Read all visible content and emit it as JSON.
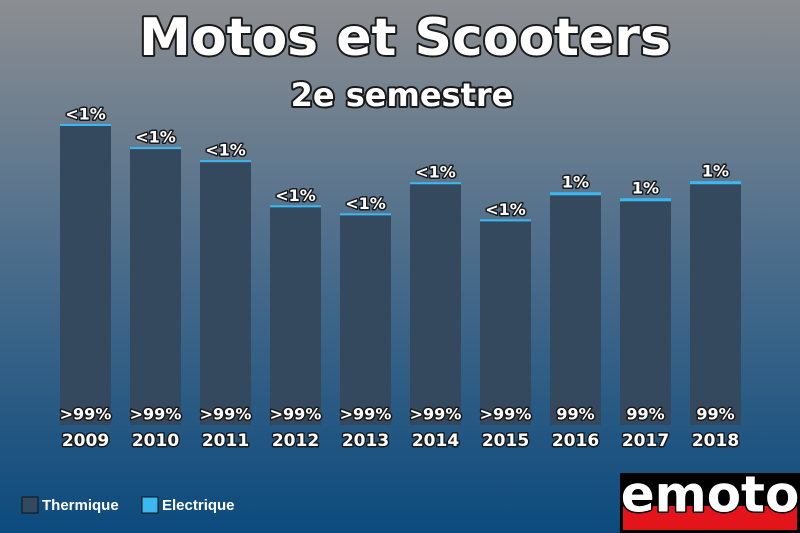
{
  "chart_data": {
    "type": "stacked_bar",
    "title": "Motos et Scooters",
    "subtitle": "2e semestre",
    "categories": [
      "2009",
      "2010",
      "2011",
      "2012",
      "2013",
      "2014",
      "2015",
      "2016",
      "2017",
      "2018"
    ],
    "series": [
      {
        "name": "Thermique",
        "color": "#34495e",
        "values": [
          298,
          275,
          262,
          217,
          209,
          240,
          203,
          229,
          223,
          240
        ],
        "value_labels": [
          ">99%",
          ">99%",
          ">99%",
          ">99%",
          ">99%",
          ">99%",
          ">99%",
          "99%",
          "99%",
          "99%"
        ]
      },
      {
        "name": "Electrique",
        "color": "#3cb8f0",
        "values": [
          2,
          2,
          2,
          2,
          2,
          2,
          2,
          3,
          3,
          3
        ],
        "value_labels": [
          "<1%",
          "<1%",
          "<1%",
          "<1%",
          "<1%",
          "<1%",
          "<1%",
          "1%",
          "1%",
          "1%"
        ]
      }
    ],
    "logo": "emoto"
  }
}
